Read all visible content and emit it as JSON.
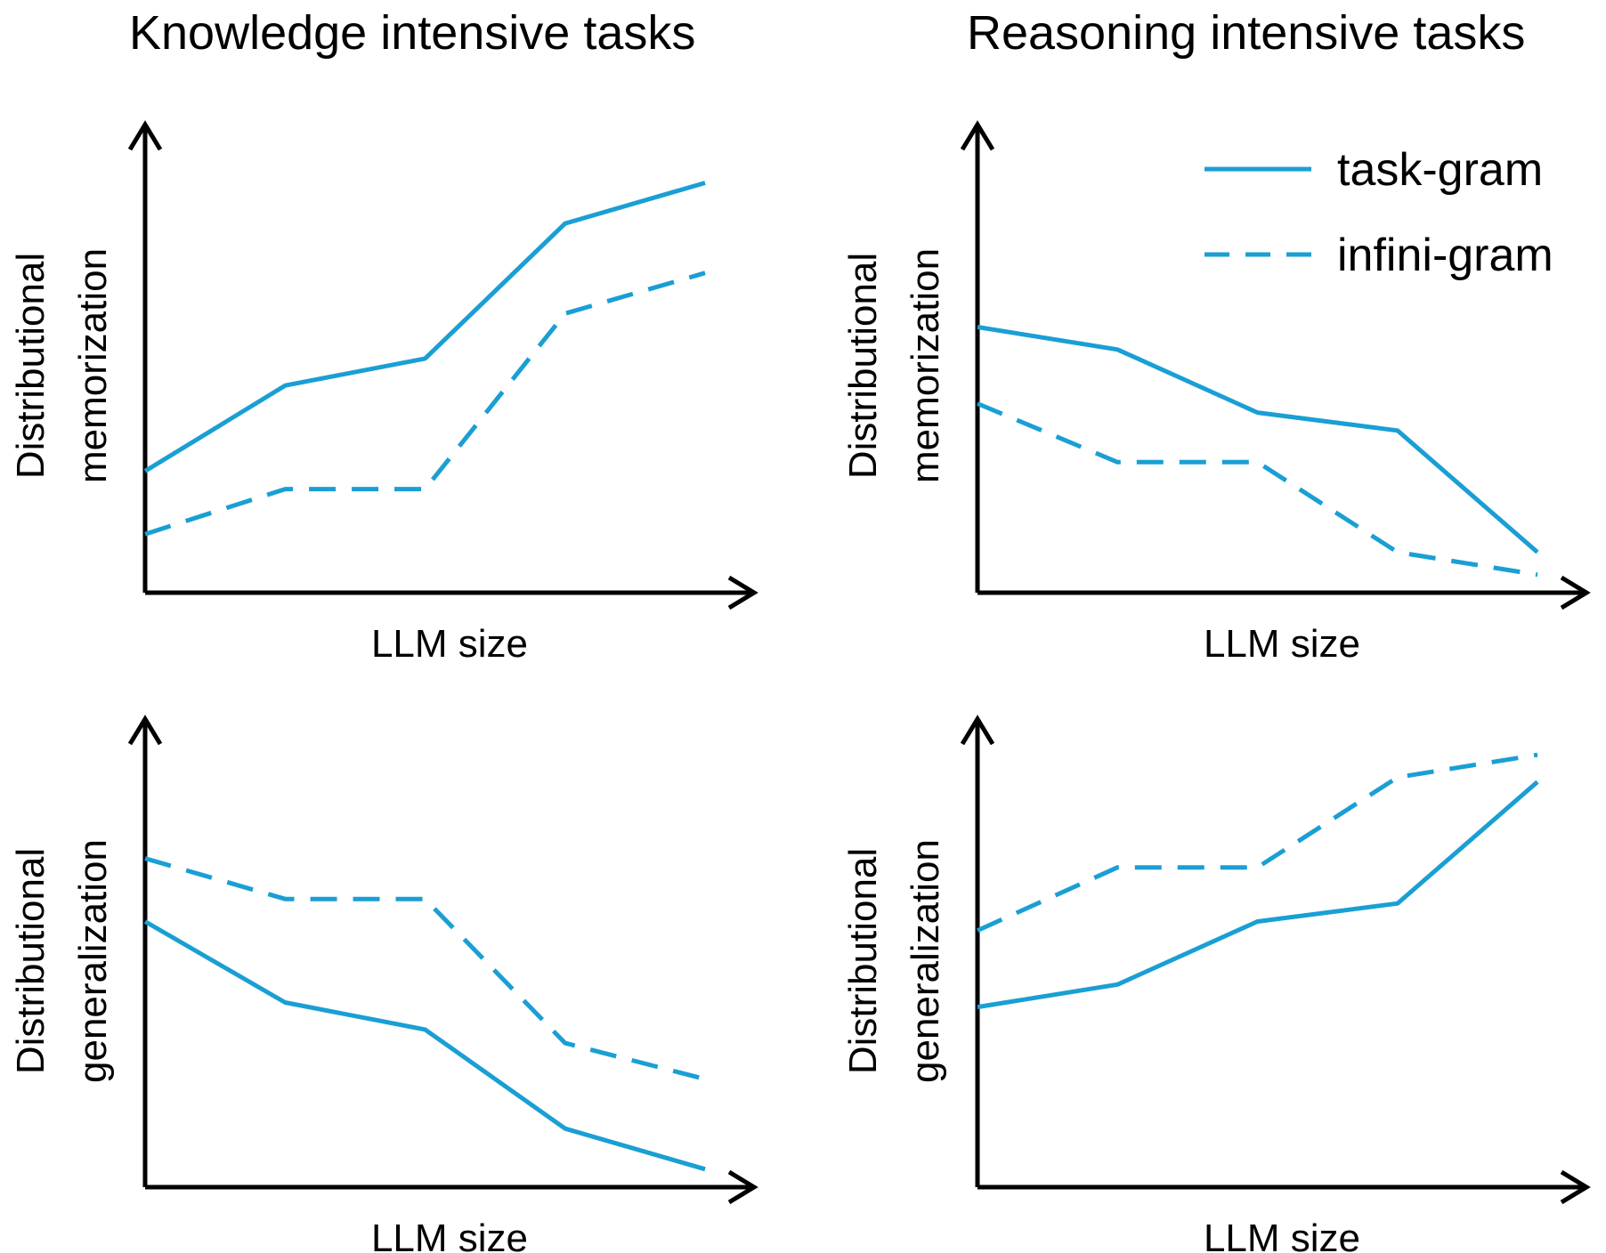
{
  "column_titles": [
    "Knowledge intensive tasks",
    "Reasoning intensive tasks"
  ],
  "legend": {
    "items": [
      {
        "label": "task-gram",
        "style": "solid"
      },
      {
        "label": "infini-gram",
        "style": "dashed"
      }
    ]
  },
  "colors": {
    "series": "#1a9fd4",
    "axis": "#000000"
  },
  "chart_data": [
    {
      "type": "line",
      "column_title": "Knowledge intensive tasks",
      "xlabel": "LLM size",
      "ylabel": [
        "Distributional",
        "memorization"
      ],
      "x": [
        0,
        1,
        2,
        3,
        4
      ],
      "xlim": [
        0,
        4.4
      ],
      "ylim": [
        0,
        100
      ],
      "grid": false,
      "series": [
        {
          "name": "task-gram",
          "style": "solid",
          "values": [
            27,
            46,
            52,
            82,
            91
          ]
        },
        {
          "name": "infini-gram",
          "style": "dashed",
          "values": [
            13,
            23,
            23,
            62,
            71
          ]
        }
      ]
    },
    {
      "type": "line",
      "column_title": "Reasoning intensive tasks",
      "xlabel": "LLM size",
      "ylabel": [
        "Distributional",
        "memorization"
      ],
      "x": [
        0,
        1,
        2,
        3,
        4
      ],
      "xlim": [
        0,
        4.4
      ],
      "ylim": [
        0,
        100
      ],
      "grid": false,
      "legend_position": "top-right",
      "series": [
        {
          "name": "task-gram",
          "style": "solid",
          "values": [
            59,
            54,
            40,
            36,
            9
          ]
        },
        {
          "name": "infini-gram",
          "style": "dashed",
          "values": [
            42,
            29,
            29,
            9,
            4
          ]
        }
      ]
    },
    {
      "type": "line",
      "column_title": "Knowledge intensive tasks",
      "xlabel": "LLM size",
      "ylabel": [
        "Distributional",
        "generalization"
      ],
      "x": [
        0,
        1,
        2,
        3,
        4
      ],
      "xlim": [
        0,
        4.4
      ],
      "ylim": [
        0,
        100
      ],
      "grid": false,
      "series": [
        {
          "name": "task-gram",
          "style": "solid",
          "values": [
            59,
            41,
            35,
            13,
            4
          ]
        },
        {
          "name": "infini-gram",
          "style": "dashed",
          "values": [
            73,
            64,
            64,
            32,
            24
          ]
        }
      ]
    },
    {
      "type": "line",
      "column_title": "Reasoning intensive tasks",
      "xlabel": "LLM size",
      "ylabel": [
        "Distributional",
        "generalization"
      ],
      "x": [
        0,
        1,
        2,
        3,
        4
      ],
      "xlim": [
        0,
        4.4
      ],
      "ylim": [
        0,
        100
      ],
      "grid": false,
      "series": [
        {
          "name": "task-gram",
          "style": "solid",
          "values": [
            40,
            45,
            59,
            63,
            90
          ]
        },
        {
          "name": "infini-gram",
          "style": "dashed",
          "values": [
            57,
            71,
            71,
            91,
            96
          ]
        }
      ]
    }
  ]
}
